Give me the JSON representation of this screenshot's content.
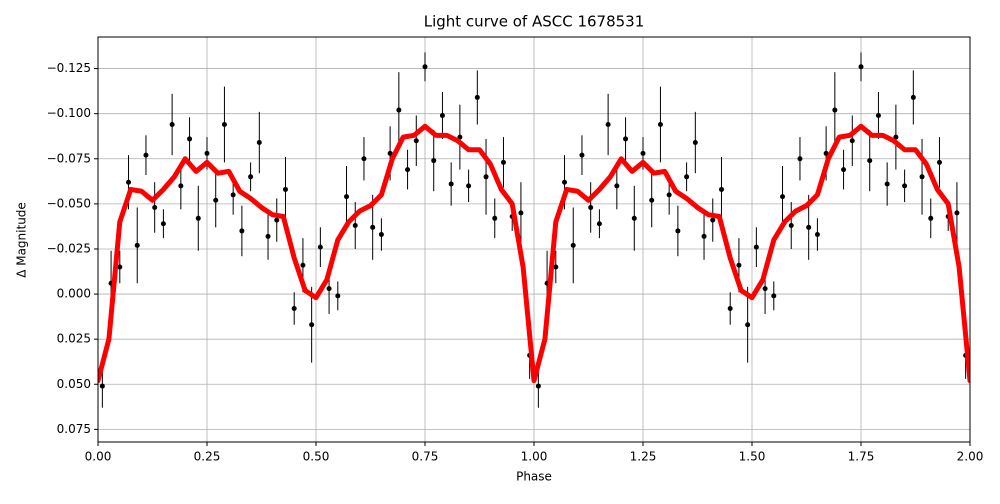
{
  "chart_data": {
    "type": "errorbar-scatter",
    "title": "Light curve of ASCC 1678531",
    "x_label": "Phase",
    "y_label": "Δ Magnitude",
    "xlim": [
      0,
      2
    ],
    "ylim": [
      0.082,
      -0.1425
    ],
    "grid": true,
    "xticks": [
      {
        "value": 0,
        "label": "0.00"
      },
      0.25,
      {
        "value": 0.5,
        "label": "0.50"
      },
      0.75,
      {
        "value": 1,
        "label": "1.00"
      },
      1.25,
      {
        "value": 1.5,
        "label": "1.50"
      },
      1.75,
      {
        "value": 2,
        "label": "2.00"
      }
    ],
    "yticks": [
      {
        "value": -0.125,
        "label": "−0.125"
      },
      {
        "value": -0.1,
        "label": "−0.100"
      },
      {
        "value": -0.075,
        "label": "−0.075"
      },
      {
        "value": -0.05,
        "label": "−0.050"
      },
      {
        "value": -0.025,
        "label": "−0.025"
      },
      {
        "value": 0,
        "label": "0.000"
      },
      0.025,
      {
        "value": 0.05,
        "label": "0.050"
      },
      0.075
    ],
    "series": [
      {
        "kind": "points",
        "color": "#000000",
        "x": [
          0.01,
          0.03,
          0.05,
          0.07,
          0.09,
          0.11,
          0.13,
          0.15,
          0.17,
          0.19,
          0.21,
          0.23,
          0.25,
          0.27,
          0.29,
          0.31,
          0.33,
          0.35,
          0.37,
          0.39,
          0.41,
          0.43,
          0.45,
          0.47,
          0.49,
          0.51,
          0.53,
          0.55,
          0.57,
          0.59,
          0.61,
          0.63,
          0.65,
          0.67,
          0.69,
          0.71,
          0.73,
          0.75,
          0.77,
          0.79,
          0.81,
          0.83,
          0.85,
          0.87,
          0.89,
          0.91,
          0.93,
          0.95,
          0.97,
          0.99,
          1.01,
          1.03,
          1.05,
          1.07,
          1.09,
          1.11,
          1.13,
          1.15,
          1.17,
          1.19,
          1.21,
          1.23,
          1.25,
          1.27,
          1.29,
          1.31,
          1.33,
          1.35,
          1.37,
          1.39,
          1.41,
          1.43,
          1.45,
          1.47,
          1.49,
          1.51,
          1.53,
          1.55,
          1.57,
          1.59,
          1.61,
          1.63,
          1.65,
          1.67,
          1.69,
          1.71,
          1.73,
          1.75,
          1.77,
          1.79,
          1.81,
          1.83,
          1.85,
          1.87,
          1.89,
          1.91,
          1.93,
          1.95,
          1.97,
          1.99
        ],
        "values": [
          0.051,
          -0.006,
          -0.015,
          -0.062,
          -0.027,
          -0.077,
          -0.048,
          -0.039,
          -0.094,
          -0.06,
          -0.086,
          -0.042,
          -0.078,
          -0.052,
          -0.094,
          -0.055,
          -0.035,
          -0.065,
          -0.084,
          -0.032,
          -0.041,
          -0.058,
          0.008,
          -0.016,
          0.017,
          -0.026,
          -0.003,
          0.001,
          -0.054,
          -0.038,
          -0.075,
          -0.037,
          -0.033,
          -0.078,
          -0.102,
          -0.069,
          -0.085,
          -0.126,
          -0.074,
          -0.099,
          -0.061,
          -0.087,
          -0.06,
          -0.109,
          -0.065,
          -0.042,
          -0.073,
          -0.043,
          -0.045,
          0.034,
          0.051,
          -0.006,
          -0.015,
          -0.062,
          -0.027,
          -0.077,
          -0.048,
          -0.039,
          -0.094,
          -0.06,
          -0.086,
          -0.042,
          -0.078,
          -0.052,
          -0.094,
          -0.055,
          -0.035,
          -0.065,
          -0.084,
          -0.032,
          -0.041,
          -0.058,
          0.008,
          -0.016,
          0.017,
          -0.026,
          -0.003,
          0.001,
          -0.054,
          -0.038,
          -0.075,
          -0.037,
          -0.033,
          -0.078,
          -0.102,
          -0.069,
          -0.085,
          -0.126,
          -0.074,
          -0.099,
          -0.061,
          -0.087,
          -0.06,
          -0.109,
          -0.065,
          -0.042,
          -0.073,
          -0.043,
          -0.045,
          0.034
        ],
        "errors": [
          0.012,
          0.018,
          0.009,
          0.015,
          0.021,
          0.011,
          0.014,
          0.008,
          0.017,
          0.013,
          0.012,
          0.018,
          0.009,
          0.015,
          0.021,
          0.011,
          0.014,
          0.008,
          0.017,
          0.013,
          0.012,
          0.018,
          0.009,
          0.015,
          0.021,
          0.011,
          0.014,
          0.008,
          0.017,
          0.013,
          0.012,
          0.018,
          0.009,
          0.015,
          0.021,
          0.011,
          0.014,
          0.008,
          0.017,
          0.013,
          0.012,
          0.018,
          0.009,
          0.015,
          0.021,
          0.011,
          0.014,
          0.008,
          0.017,
          0.013,
          0.012,
          0.018,
          0.009,
          0.015,
          0.021,
          0.011,
          0.014,
          0.008,
          0.017,
          0.013,
          0.012,
          0.018,
          0.009,
          0.015,
          0.021,
          0.011,
          0.014,
          0.008,
          0.017,
          0.013,
          0.012,
          0.018,
          0.009,
          0.015,
          0.021,
          0.011,
          0.014,
          0.008,
          0.017,
          0.013,
          0.012,
          0.018,
          0.009,
          0.015,
          0.021,
          0.011,
          0.014,
          0.008,
          0.017,
          0.013,
          0.012,
          0.018,
          0.009,
          0.015,
          0.021,
          0.011,
          0.014,
          0.008,
          0.017,
          0.013
        ]
      },
      {
        "kind": "line",
        "color": "#ff0000",
        "x": [
          0,
          0.025,
          0.05,
          0.075,
          0.1,
          0.125,
          0.15,
          0.175,
          0.2,
          0.225,
          0.25,
          0.275,
          0.3,
          0.325,
          0.35,
          0.375,
          0.4,
          0.425,
          0.45,
          0.475,
          0.5,
          0.525,
          0.55,
          0.575,
          0.6,
          0.625,
          0.65,
          0.675,
          0.7,
          0.725,
          0.75,
          0.775,
          0.8,
          0.825,
          0.85,
          0.875,
          0.9,
          0.925,
          0.95,
          0.975,
          1,
          1.025,
          1.05,
          1.075,
          1.1,
          1.125,
          1.15,
          1.175,
          1.2,
          1.225,
          1.25,
          1.275,
          1.3,
          1.325,
          1.35,
          1.375,
          1.4,
          1.425,
          1.45,
          1.475,
          1.5,
          1.525,
          1.55,
          1.575,
          1.6,
          1.625,
          1.65,
          1.675,
          1.7,
          1.725,
          1.75,
          1.775,
          1.8,
          1.825,
          1.85,
          1.875,
          1.9,
          1.925,
          1.95,
          1.975,
          2
        ],
        "values": [
          0.048,
          0.025,
          -0.04,
          -0.058,
          -0.057,
          -0.052,
          -0.058,
          -0.065,
          -0.075,
          -0.068,
          -0.073,
          -0.067,
          -0.068,
          -0.057,
          -0.053,
          -0.048,
          -0.044,
          -0.043,
          -0.02,
          -0.002,
          0.002,
          -0.008,
          -0.03,
          -0.04,
          -0.046,
          -0.049,
          -0.055,
          -0.075,
          -0.087,
          -0.088,
          -0.093,
          -0.088,
          -0.088,
          -0.085,
          -0.08,
          -0.08,
          -0.072,
          -0.058,
          -0.05,
          -0.015,
          0.048,
          0.025,
          -0.04,
          -0.058,
          -0.057,
          -0.052,
          -0.058,
          -0.065,
          -0.075,
          -0.068,
          -0.073,
          -0.067,
          -0.068,
          -0.057,
          -0.053,
          -0.048,
          -0.044,
          -0.043,
          -0.02,
          -0.002,
          0.002,
          -0.008,
          -0.03,
          -0.04,
          -0.046,
          -0.049,
          -0.055,
          -0.075,
          -0.087,
          -0.088,
          -0.093,
          -0.088,
          -0.088,
          -0.085,
          -0.08,
          -0.08,
          -0.072,
          -0.058,
          -0.05,
          -0.015,
          0.048
        ]
      }
    ]
  }
}
